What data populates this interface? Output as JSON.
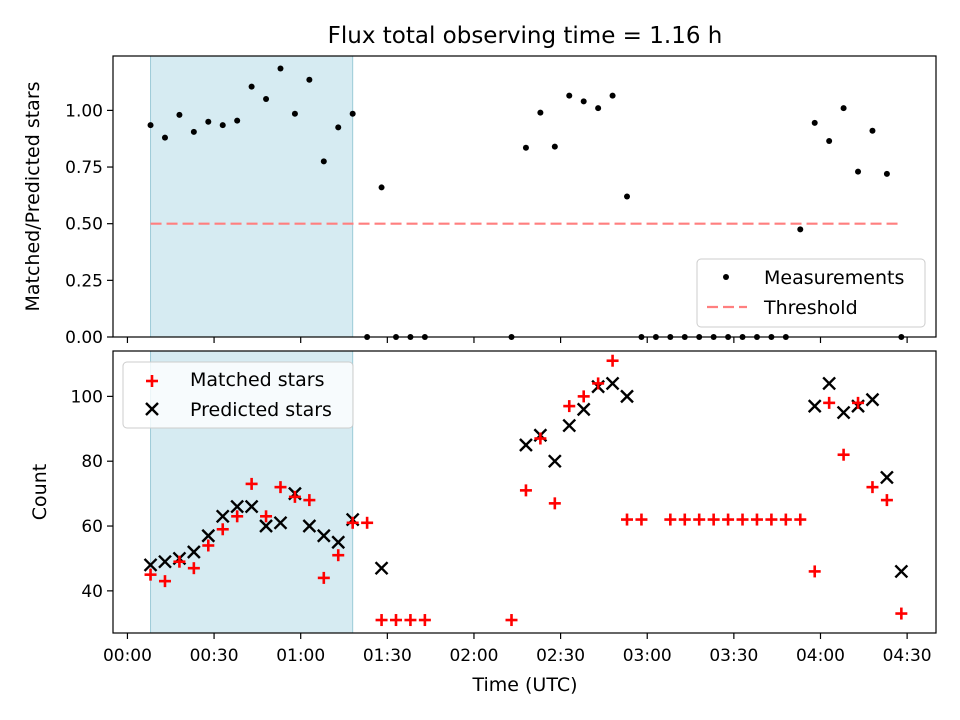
{
  "title": "Flux total observing time = 1.16 h",
  "chart_data": [
    {
      "type": "scatter",
      "panel": "top",
      "title": "Flux total observing time = 1.16 h",
      "ylabel": "Matched/Predicted stars",
      "xlabel": "",
      "ylim": [
        0.0,
        1.24
      ],
      "yticks": [
        "0.00",
        "0.25",
        "0.50",
        "0.75",
        "1.00"
      ],
      "ytick_values": [
        0,
        0.25,
        0.5,
        0.75,
        1.0
      ],
      "shaded_interval": {
        "start_min": 8,
        "end_min": 78,
        "color": "#add8e6"
      },
      "threshold": {
        "name": "Threshold",
        "value": 0.5,
        "x_start_min": 8,
        "x_end_min": 268,
        "color": "#ff7f7f",
        "style": "dashed"
      },
      "legend": {
        "position": "lower-right",
        "entries": [
          "Measurements",
          "Threshold"
        ]
      },
      "series": [
        {
          "name": "Measurements",
          "color": "#000000",
          "marker": "dot",
          "x_min": [
            8,
            13,
            18,
            23,
            28,
            33,
            38,
            43,
            48,
            53,
            58,
            63,
            68,
            73,
            78,
            83,
            88,
            93,
            98,
            103,
            133,
            138,
            143,
            148,
            153,
            158,
            163,
            168,
            173,
            178,
            183,
            188,
            193,
            198,
            203,
            208,
            213,
            218,
            223,
            228,
            233,
            238,
            243,
            248,
            253,
            258,
            263,
            268
          ],
          "y": [
            0.935,
            0.88,
            0.98,
            0.905,
            0.95,
            0.935,
            0.955,
            1.105,
            1.05,
            1.185,
            0.985,
            1.135,
            0.775,
            0.925,
            0.985,
            0.0,
            0.66,
            0.0,
            0.0,
            0.0,
            0.0,
            0.835,
            0.99,
            0.84,
            1.065,
            1.04,
            1.01,
            1.065,
            0.62,
            0.0,
            0.0,
            0.0,
            0.0,
            0.0,
            0.0,
            0.0,
            0.0,
            0.0,
            0.0,
            0.0,
            0.475,
            0.945,
            0.865,
            1.01,
            0.73,
            0.91,
            0.72,
            0.0
          ]
        }
      ]
    },
    {
      "type": "scatter",
      "panel": "bottom",
      "ylabel": "Count",
      "xlabel": "Time (UTC)",
      "xlim_min": [
        -5,
        280
      ],
      "ylim": [
        27,
        114
      ],
      "yticks": [
        "40",
        "60",
        "80",
        "100"
      ],
      "ytick_values": [
        40,
        60,
        80,
        100
      ],
      "xticks": [
        "00:00",
        "00:30",
        "01:00",
        "01:30",
        "02:00",
        "02:30",
        "03:00",
        "03:30",
        "04:00",
        "04:30"
      ],
      "xtick_values_min": [
        0,
        30,
        60,
        90,
        120,
        150,
        180,
        210,
        240,
        270
      ],
      "shaded_interval": {
        "start_min": 8,
        "end_min": 78,
        "color": "#add8e6"
      },
      "legend": {
        "position": "upper-left",
        "entries": [
          "Matched stars",
          "Predicted stars"
        ]
      },
      "series": [
        {
          "name": "Matched stars",
          "color": "#ff0000",
          "marker": "plus",
          "x_min": [
            8,
            13,
            18,
            23,
            28,
            33,
            38,
            43,
            48,
            53,
            58,
            63,
            68,
            73,
            78,
            83,
            88,
            93,
            98,
            103,
            133,
            138,
            143,
            148,
            153,
            158,
            163,
            168,
            173,
            178,
            188,
            193,
            198,
            203,
            208,
            213,
            218,
            223,
            228,
            233,
            238,
            243,
            248,
            253,
            258,
            263,
            268
          ],
          "y": [
            45,
            43,
            49,
            47,
            54,
            59,
            63,
            73,
            63,
            72,
            69,
            68,
            44,
            51,
            61,
            61,
            31,
            31,
            31,
            31,
            31,
            71,
            87,
            67,
            97,
            100,
            104,
            111,
            62,
            62,
            62,
            62,
            62,
            62,
            62,
            62,
            62,
            62,
            62,
            62,
            46,
            98,
            82,
            98,
            72,
            68,
            33
          ]
        },
        {
          "name": "Predicted stars",
          "color": "#000000",
          "marker": "x",
          "x_min": [
            8,
            13,
            18,
            23,
            28,
            33,
            38,
            43,
            48,
            53,
            58,
            63,
            68,
            73,
            78,
            88,
            138,
            143,
            148,
            153,
            158,
            163,
            168,
            173,
            238,
            243,
            248,
            253,
            258,
            263,
            268
          ],
          "y": [
            48,
            49,
            50,
            52,
            57,
            63,
            66,
            66,
            60,
            61,
            70,
            60,
            57,
            55,
            62,
            47,
            85,
            88,
            80,
            91,
            96,
            103,
            104,
            100,
            97,
            104,
            95,
            97,
            99,
            75,
            46
          ]
        }
      ]
    }
  ]
}
